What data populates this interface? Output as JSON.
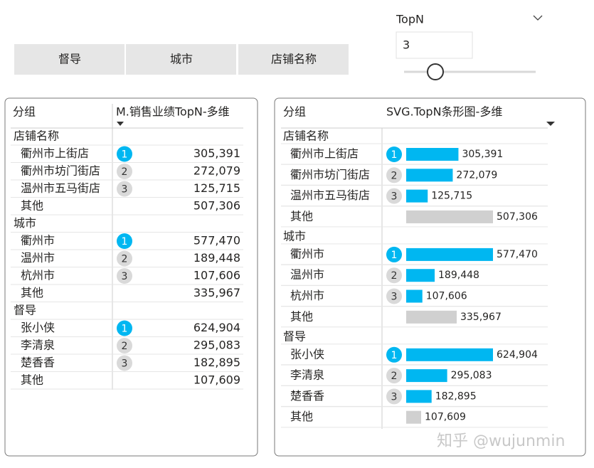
{
  "slicer": {
    "buttons": [
      "督导",
      "城市",
      "店铺名称"
    ]
  },
  "topn": {
    "title": "TopN",
    "value": 3
  },
  "left_table": {
    "headers": [
      "分组",
      "M.销售业绩TopN-多维"
    ]
  },
  "right_table": {
    "headers": [
      "分组",
      "SVG.TopN条形图-多维"
    ]
  },
  "groups": [
    {
      "name": "店铺名称",
      "rows": [
        {
          "name": "衢州市上街店",
          "rank": 1,
          "value": 305391,
          "value_label": "305,391"
        },
        {
          "name": "衢州市坊门街店",
          "rank": 2,
          "value": 272079,
          "value_label": "272,079"
        },
        {
          "name": "温州市五马街店",
          "rank": 3,
          "value": 125715,
          "value_label": "125,715"
        },
        {
          "name": "其他",
          "value": 507306,
          "value_label": "507,306"
        }
      ]
    },
    {
      "name": "城市",
      "rows": [
        {
          "name": "衢州市",
          "rank": 1,
          "value": 577470,
          "value_label": "577,470"
        },
        {
          "name": "温州市",
          "rank": 2,
          "value": 189448,
          "value_label": "189,448"
        },
        {
          "name": "杭州市",
          "rank": 3,
          "value": 107606,
          "value_label": "107,606"
        },
        {
          "name": "其他",
          "value": 335967,
          "value_label": "335,967"
        }
      ]
    },
    {
      "name": "督导",
      "rows": [
        {
          "name": "张小侠",
          "rank": 1,
          "value": 624904,
          "value_label": "624,904"
        },
        {
          "name": "李清泉",
          "rank": 2,
          "value": 295083,
          "value_label": "295,083"
        },
        {
          "name": "楚香香",
          "rank": 3,
          "value": 182895,
          "value_label": "182,895"
        },
        {
          "name": "其他",
          "value": 107609,
          "value_label": "107,609"
        }
      ]
    }
  ],
  "watermark": "知乎 @wujunmin"
}
